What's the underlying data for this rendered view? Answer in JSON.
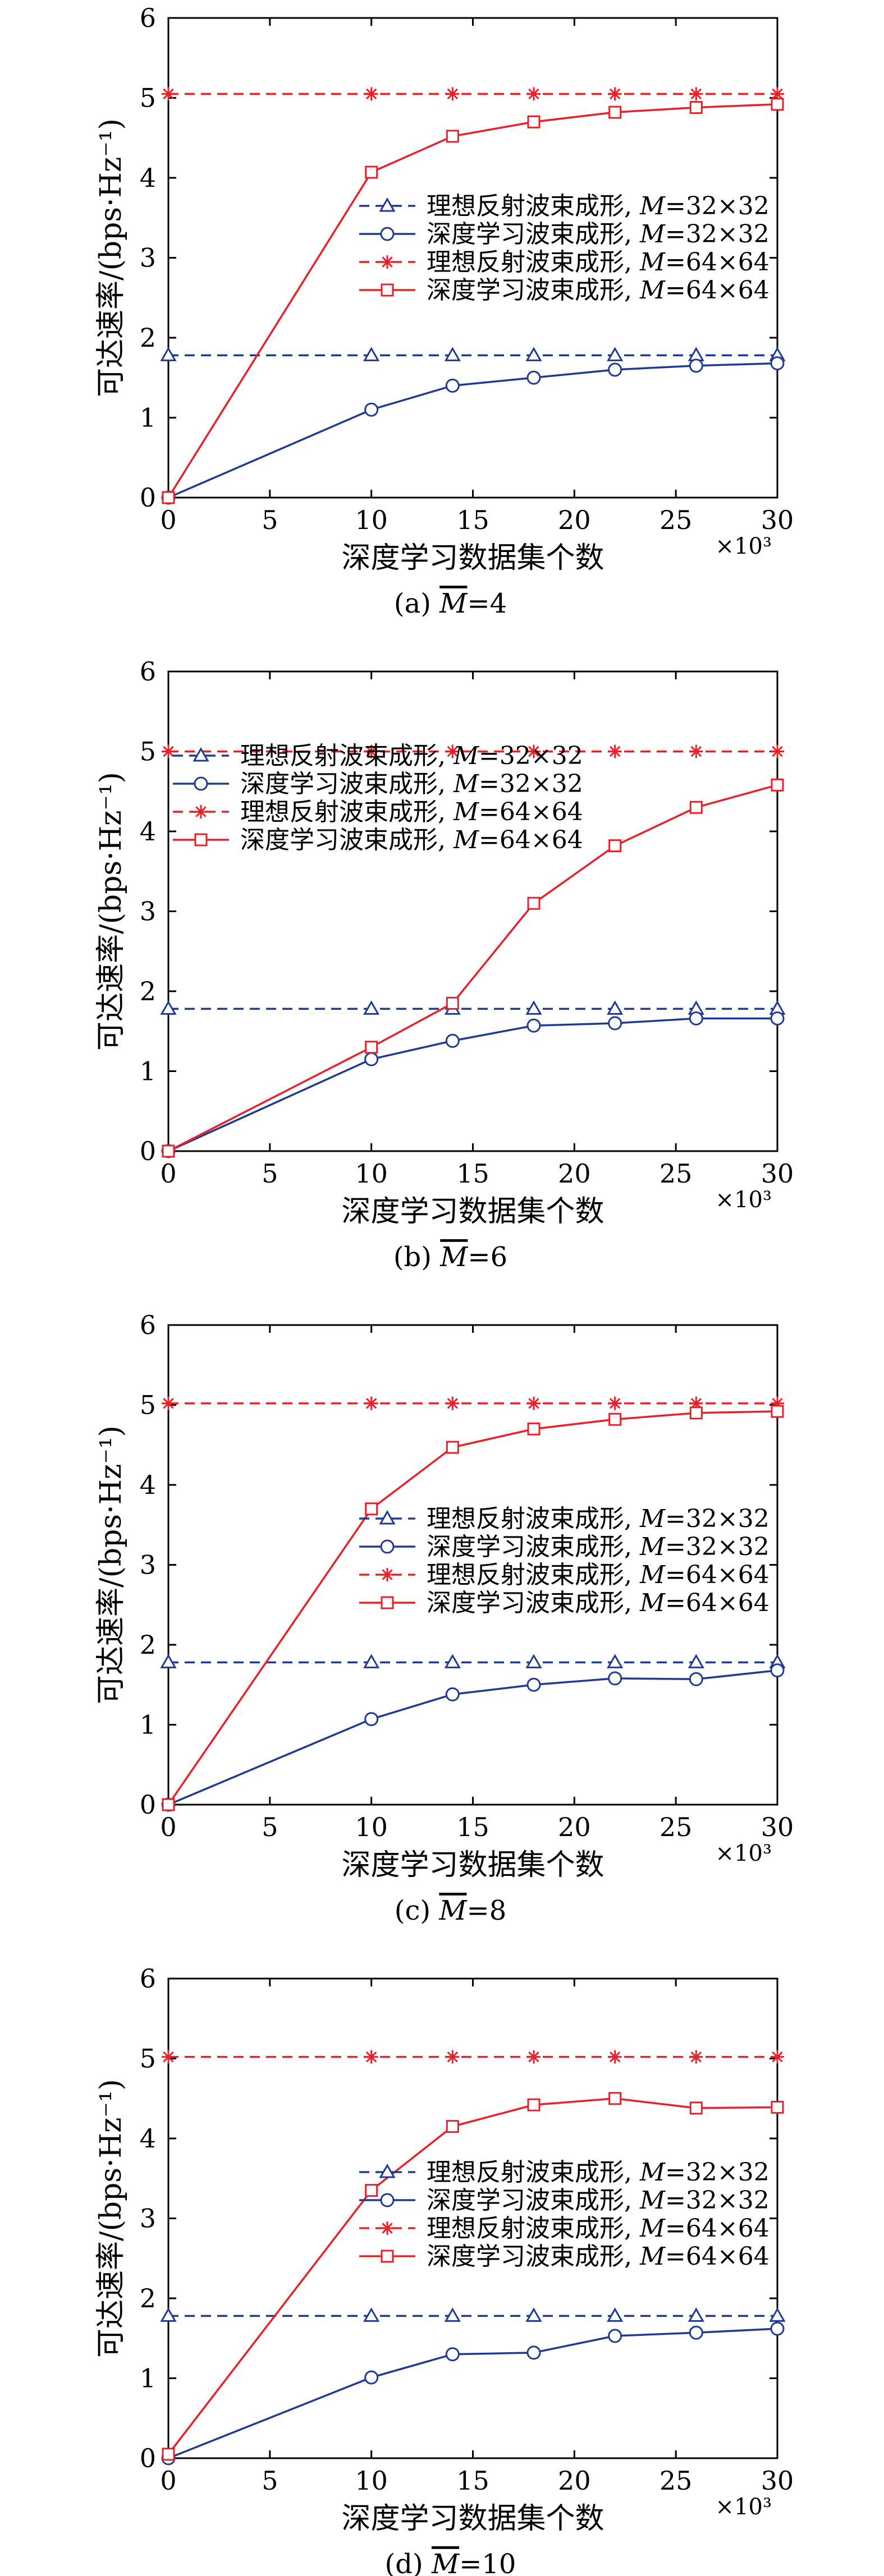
{
  "chart_data": [
    {
      "type": "line",
      "caption_prefix": "(a) ",
      "caption_symbol": "M",
      "caption_value": "=4",
      "xlabel": "深度学习数据集个数",
      "ylabel": "可达速率/(bps·Hz⁻¹)",
      "x_multiplier": "×10³",
      "xlim": [
        0,
        30
      ],
      "ylim": [
        0,
        6
      ],
      "xticks": [
        0,
        5,
        10,
        15,
        20,
        25,
        30
      ],
      "yticks": [
        0,
        1,
        2,
        3,
        4,
        5,
        6
      ],
      "grid": false,
      "legend_position": "middle",
      "x": [
        0,
        10,
        14,
        18,
        22,
        26,
        30
      ],
      "series": [
        {
          "name": "理想反射波束成形, M=32×32",
          "legend_prefix": "理想反射波束成形, ",
          "legend_italic": "M",
          "legend_suffix": "=32×32",
          "color": "#1f3a93",
          "dash": true,
          "marker": "triangle",
          "values": [
            1.78,
            1.78,
            1.78,
            1.78,
            1.78,
            1.78,
            1.78
          ]
        },
        {
          "name": "深度学习波束成形, M=32×32",
          "legend_prefix": "深度学习波束成形, ",
          "legend_italic": "M",
          "legend_suffix": "=32×32",
          "color": "#1f3a93",
          "dash": false,
          "marker": "circle",
          "values": [
            0,
            1.1,
            1.4,
            1.5,
            1.6,
            1.65,
            1.68
          ]
        },
        {
          "name": "理想反射波束成形, M=64×64",
          "legend_prefix": "理想反射波束成形, ",
          "legend_italic": "M",
          "legend_suffix": "=64×64",
          "color": "#e8202a",
          "dash": true,
          "marker": "star",
          "values": [
            5.05,
            5.05,
            5.05,
            5.05,
            5.05,
            5.05,
            5.05
          ]
        },
        {
          "name": "深度学习波束成形, M=64×64",
          "legend_prefix": "深度学习波束成形, ",
          "legend_italic": "M",
          "legend_suffix": "=64×64",
          "color": "#e8202a",
          "dash": false,
          "marker": "square",
          "values": [
            0,
            4.07,
            4.52,
            4.7,
            4.82,
            4.88,
            4.92
          ]
        }
      ]
    },
    {
      "type": "line",
      "caption_prefix": "(b) ",
      "caption_symbol": "M",
      "caption_value": "=6",
      "xlabel": "深度学习数据集个数",
      "ylabel": "可达速率/(bps·Hz⁻¹)",
      "x_multiplier": "×10³",
      "xlim": [
        0,
        30
      ],
      "ylim": [
        0,
        6
      ],
      "xticks": [
        0,
        5,
        10,
        15,
        20,
        25,
        30
      ],
      "yticks": [
        0,
        1,
        2,
        3,
        4,
        5,
        6
      ],
      "grid": false,
      "legend_position": "upper-left",
      "x": [
        0,
        10,
        14,
        18,
        22,
        26,
        30
      ],
      "series": [
        {
          "name": "理想反射波束成形, M=32×32",
          "legend_prefix": "理想反射波束成形, ",
          "legend_italic": "M",
          "legend_suffix": "=32×32",
          "color": "#1f3a93",
          "dash": true,
          "marker": "triangle",
          "values": [
            1.78,
            1.78,
            1.78,
            1.78,
            1.78,
            1.78,
            1.78
          ]
        },
        {
          "name": "深度学习波束成形, M=32×32",
          "legend_prefix": "深度学习波束成形, ",
          "legend_italic": "M",
          "legend_suffix": "=32×32",
          "color": "#1f3a93",
          "dash": false,
          "marker": "circle",
          "values": [
            0,
            1.15,
            1.38,
            1.57,
            1.6,
            1.66,
            1.66
          ]
        },
        {
          "name": "理想反射波束成形, M=64×64",
          "legend_prefix": "理想反射波束成形, ",
          "legend_italic": "M",
          "legend_suffix": "=64×64",
          "color": "#e8202a",
          "dash": true,
          "marker": "star",
          "values": [
            5.0,
            5.0,
            5.0,
            5.0,
            5.0,
            5.0,
            5.0
          ]
        },
        {
          "name": "深度学习波束成形, M=64×64",
          "legend_prefix": "深度学习波束成形, ",
          "legend_italic": "M",
          "legend_suffix": "=64×64",
          "color": "#e8202a",
          "dash": false,
          "marker": "square",
          "values": [
            0,
            1.3,
            1.85,
            3.1,
            3.82,
            4.3,
            4.58
          ]
        }
      ]
    },
    {
      "type": "line",
      "caption_prefix": "(c) ",
      "caption_symbol": "M",
      "caption_value": "=8",
      "xlabel": "深度学习数据集个数",
      "ylabel": "可达速率/(bps·Hz⁻¹)",
      "x_multiplier": "×10³",
      "xlim": [
        0,
        30
      ],
      "ylim": [
        0,
        6
      ],
      "xticks": [
        0,
        5,
        10,
        15,
        20,
        25,
        30
      ],
      "yticks": [
        0,
        1,
        2,
        3,
        4,
        5,
        6
      ],
      "grid": false,
      "legend_position": "middle-right",
      "x": [
        0,
        10,
        14,
        18,
        22,
        26,
        30
      ],
      "series": [
        {
          "name": "理想反射波束成形, M=32×32",
          "legend_prefix": "理想反射波束成形, ",
          "legend_italic": "M",
          "legend_suffix": "=32×32",
          "color": "#1f3a93",
          "dash": true,
          "marker": "triangle",
          "values": [
            1.78,
            1.78,
            1.78,
            1.78,
            1.78,
            1.78,
            1.78
          ]
        },
        {
          "name": "深度学习波束成形, M=32×32",
          "legend_prefix": "深度学习波束成形, ",
          "legend_italic": "M",
          "legend_suffix": "=32×32",
          "color": "#1f3a93",
          "dash": false,
          "marker": "circle",
          "values": [
            0,
            1.07,
            1.38,
            1.5,
            1.58,
            1.57,
            1.68
          ]
        },
        {
          "name": "理想反射波束成形, M=64×64",
          "legend_prefix": "理想反射波束成形, ",
          "legend_italic": "M",
          "legend_suffix": "=64×64",
          "color": "#e8202a",
          "dash": true,
          "marker": "star",
          "values": [
            5.02,
            5.02,
            5.02,
            5.02,
            5.02,
            5.02,
            5.02
          ]
        },
        {
          "name": "深度学习波束成形, M=64×64",
          "legend_prefix": "深度学习波束成形, ",
          "legend_italic": "M",
          "legend_suffix": "=64×64",
          "color": "#e8202a",
          "dash": false,
          "marker": "square",
          "values": [
            0,
            3.7,
            4.47,
            4.7,
            4.82,
            4.9,
            4.92
          ]
        }
      ]
    },
    {
      "type": "line",
      "caption_prefix": "(d) ",
      "caption_symbol": "M",
      "caption_value": "=10",
      "xlabel": "深度学习数据集个数",
      "ylabel": "可达速率/(bps·Hz⁻¹)",
      "x_multiplier": "×10³",
      "xlim": [
        0,
        30
      ],
      "ylim": [
        0,
        6
      ],
      "xticks": [
        0,
        5,
        10,
        15,
        20,
        25,
        30
      ],
      "yticks": [
        0,
        1,
        2,
        3,
        4,
        5,
        6
      ],
      "grid": false,
      "legend_position": "middle-right",
      "x": [
        0,
        10,
        14,
        18,
        22,
        26,
        30
      ],
      "series": [
        {
          "name": "理想反射波束成形, M=32×32",
          "legend_prefix": "理想反射波束成形, ",
          "legend_italic": "M",
          "legend_suffix": "=32×32",
          "color": "#1f3a93",
          "dash": true,
          "marker": "triangle",
          "values": [
            1.78,
            1.78,
            1.78,
            1.78,
            1.78,
            1.78,
            1.78
          ]
        },
        {
          "name": "深度学习波束成形, M=32×32",
          "legend_prefix": "深度学习波束成形, ",
          "legend_italic": "M",
          "legend_suffix": "=32×32",
          "color": "#1f3a93",
          "dash": false,
          "marker": "circle",
          "values": [
            0,
            1.01,
            1.3,
            1.32,
            1.53,
            1.57,
            1.62
          ]
        },
        {
          "name": "理想反射波束成形, M=64×64",
          "legend_prefix": "理想反射波束成形, ",
          "legend_italic": "M",
          "legend_suffix": "=64×64",
          "color": "#e8202a",
          "dash": true,
          "marker": "star",
          "values": [
            5.02,
            5.02,
            5.02,
            5.02,
            5.02,
            5.02,
            5.02
          ]
        },
        {
          "name": "深度学习波束成形, M=64×64",
          "legend_prefix": "深度学习波束成形, ",
          "legend_italic": "M",
          "legend_suffix": "=64×64",
          "color": "#e8202a",
          "dash": false,
          "marker": "square",
          "values": [
            0.05,
            3.35,
            4.15,
            4.42,
            4.5,
            4.38,
            4.39
          ]
        }
      ]
    }
  ]
}
